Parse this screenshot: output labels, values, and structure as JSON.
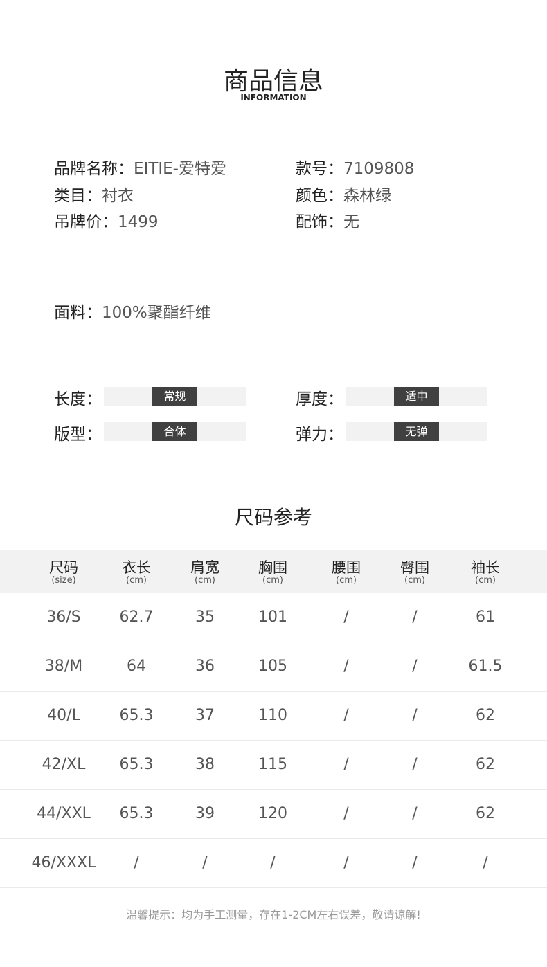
{
  "header": {
    "title": "商品信息",
    "subtitle": "INFORMATION"
  },
  "info": [
    {
      "k": "品牌名称：",
      "v": "EITIE-爱特爱"
    },
    {
      "k": "款号：",
      "v": "7109808"
    },
    {
      "k": "类目：",
      "v": "衬衣"
    },
    {
      "k": "颜色：",
      "v": "森林绿"
    },
    {
      "k": "吊牌价：",
      "v": "1499"
    },
    {
      "k": "配饰：",
      "v": "无"
    }
  ],
  "fabric": {
    "k": "面料：",
    "v": "100%聚酯纤维"
  },
  "attributes": [
    {
      "label": "长度：",
      "value": "常规"
    },
    {
      "label": "厚度：",
      "value": "适中"
    },
    {
      "label": "版型：",
      "value": "合体"
    },
    {
      "label": "弹力：",
      "value": "无弹"
    }
  ],
  "size_chart": {
    "title": "尺码参考",
    "headers": [
      {
        "name": "尺码",
        "unit": "(size)"
      },
      {
        "name": "衣长",
        "unit": "(cm)"
      },
      {
        "name": "肩宽",
        "unit": "(cm)"
      },
      {
        "name": "胸围",
        "unit": "(cm)"
      },
      {
        "name": "腰围",
        "unit": "(cm)"
      },
      {
        "name": "臀围",
        "unit": "(cm)"
      },
      {
        "name": "袖长",
        "unit": "(cm)"
      }
    ],
    "rows": [
      [
        "36/S",
        "62.7",
        "35",
        "101",
        "/",
        "/",
        "61"
      ],
      [
        "38/M",
        "64",
        "36",
        "105",
        "/",
        "/",
        "61.5"
      ],
      [
        "40/L",
        "65.3",
        "37",
        "110",
        "/",
        "/",
        "62"
      ],
      [
        "42/XL",
        "65.3",
        "38",
        "115",
        "/",
        "/",
        "62"
      ],
      [
        "44/XXL",
        "65.3",
        "39",
        "120",
        "/",
        "/",
        "62"
      ],
      [
        "46/XXXL",
        "/",
        "/",
        "/",
        "/",
        "/",
        "/"
      ]
    ]
  },
  "note": "温馨提示：均为手工测量，存在1-2CM左右误差，敬请谅解!"
}
